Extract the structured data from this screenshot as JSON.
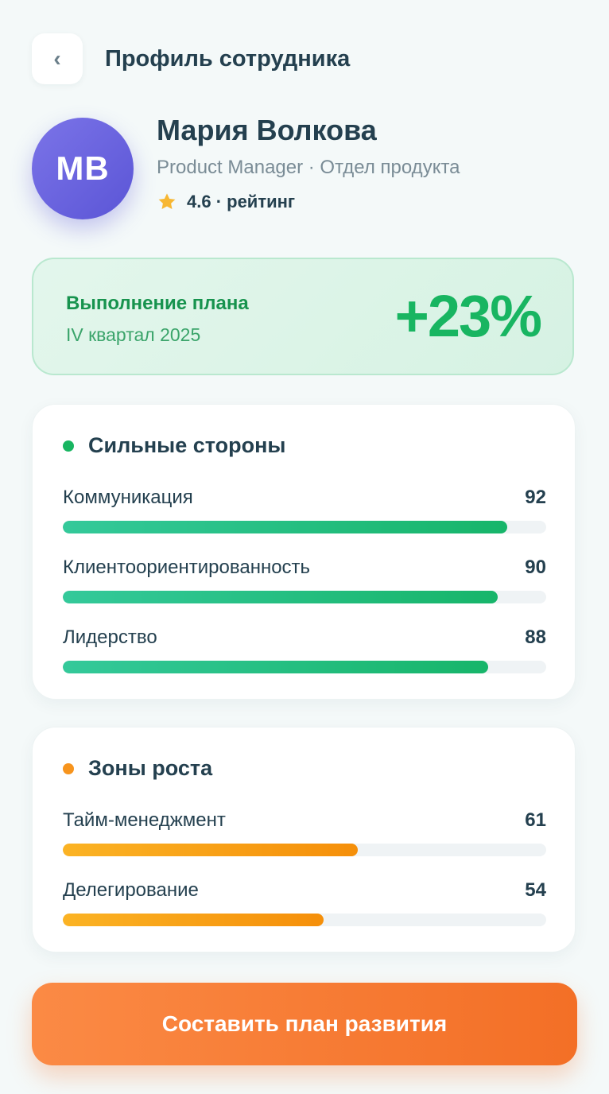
{
  "header": {
    "back_icon": "‹",
    "title": "Профиль сотрудника"
  },
  "profile": {
    "initials": "МВ",
    "name": "Мария Волкова",
    "role": "Product Manager · Отдел продукта",
    "rating": "4.6 · рейтинг"
  },
  "plan": {
    "title": "Выполнение плана",
    "period": "IV квартал 2025",
    "value": "+23%"
  },
  "strengths": {
    "heading": "Сильные стороны",
    "items": [
      {
        "name": "Коммуникация",
        "value": "92",
        "level": 92
      },
      {
        "name": "Клиентоориентированность",
        "value": "90",
        "level": 90
      },
      {
        "name": "Лидерство",
        "value": "88",
        "level": 88
      }
    ]
  },
  "growth": {
    "heading": "Зоны роста",
    "items": [
      {
        "name": "Тайм-менеджмент",
        "value": "61",
        "level": 61
      },
      {
        "name": "Делегирование",
        "value": "54",
        "level": 54
      }
    ]
  },
  "cta": {
    "label": "Составить план развития"
  },
  "colors": {
    "accent_green": "#18b561",
    "accent_orange": "#f7941d",
    "cta": "#f36f26",
    "avatar": "#5b55d6"
  }
}
